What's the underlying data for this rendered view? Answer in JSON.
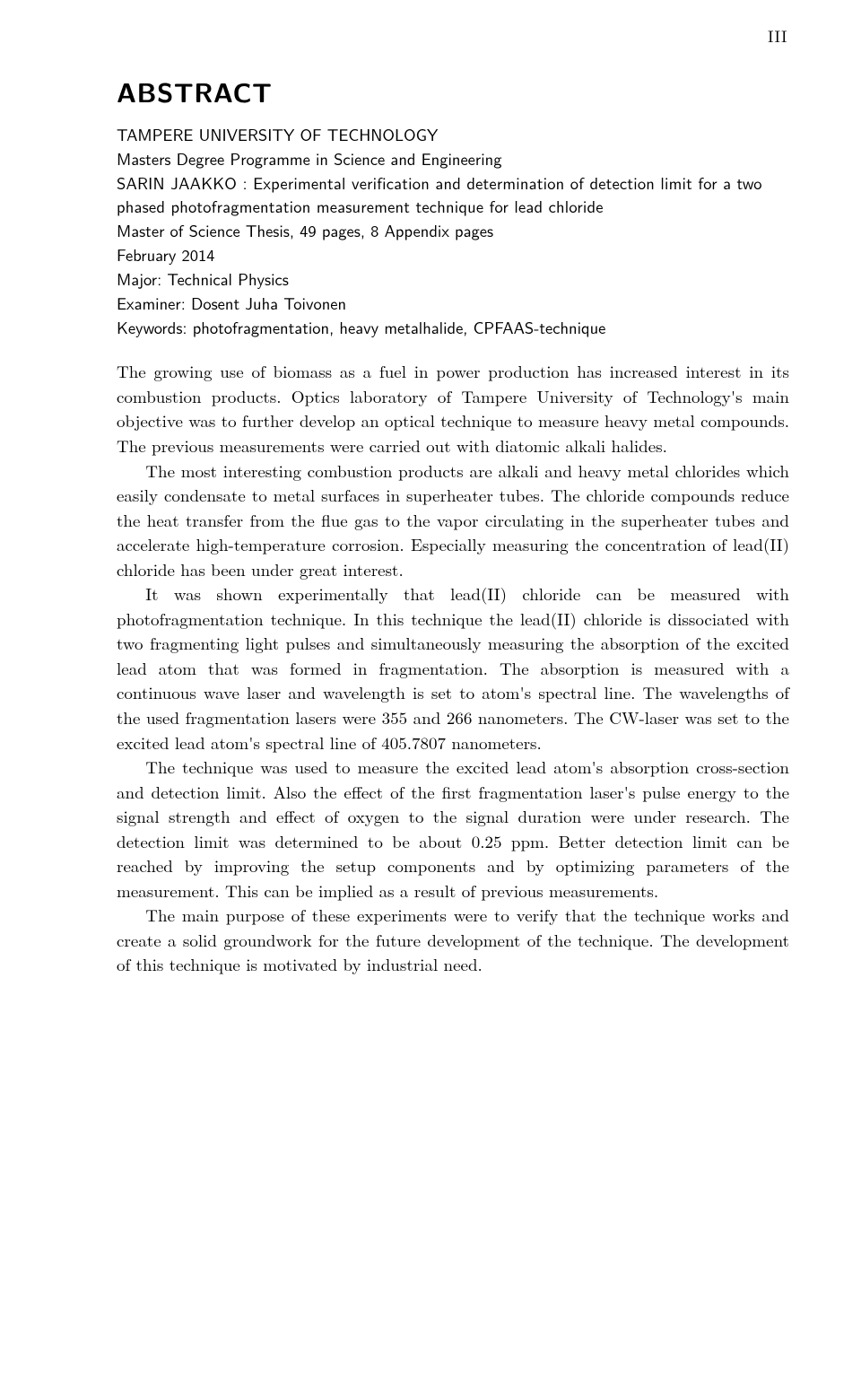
{
  "page_number": "III",
  "heading": "ABSTRACT",
  "meta": {
    "university": "TAMPERE UNIVERSITY OF TECHNOLOGY",
    "programme": "Masters Degree Programme in Science and Engineering",
    "author_line": "SARIN JAAKKO : Experimental verification and determination of detection limit for a two phased photofragmentation measurement technique for lead chloride",
    "thesis_line": "Master of Science Thesis, 49 pages, 8 Appendix pages",
    "date": "February 2014",
    "major": "Major: Technical Physics",
    "examiner": "Examiner: Dosent Juha Toivonen",
    "keywords": "Keywords: photofragmentation, heavy metalhalide, CPFAAS-technique"
  },
  "paragraphs": [
    "The growing use of biomass as a fuel in power production has increased interest in its combustion products. Optics laboratory of Tampere University of Technology's main objective was to further develop an optical technique to measure heavy metal compounds. The previous measurements were carried out with diatomic alkali halides.",
    "The most interesting combustion products are alkali and heavy metal chlorides which easily condensate to metal surfaces in superheater tubes. The chloride compounds reduce the heat transfer from the flue gas to the vapor circulating in the superheater tubes and accelerate high-temperature corrosion. Especially measuring the concentration of lead(II) chloride has been under great interest.",
    "It was shown experimentally that lead(II) chloride can be measured with photofragmentation technique. In this technique the lead(II) chloride is dissociated with two fragmenting light pulses and simultaneously measuring the absorption of the excited lead atom that was formed in fragmentation. The absorption is measured with a continuous wave laser and wavelength is set to atom's spectral line. The wavelengths of the used fragmentation lasers were 355 and 266 nanometers. The CW-laser was set to the excited lead atom's spectral line of 405.7807 nanometers.",
    "The technique was used to measure the excited lead atom's absorption cross-section and detection limit. Also the effect of the first fragmentation laser's pulse energy to the signal strength and effect of oxygen to the signal duration were under research. The detection limit was determined to be about 0.25 ppm. Better detection limit can be reached by improving the setup components and by optimizing parameters of the measurement. This can be implied as a result of previous measurements.",
    "The main purpose of these experiments were to verify that the technique works and create a solid groundwork for the future development of the technique. The development of this technique is motivated by industrial need."
  ]
}
